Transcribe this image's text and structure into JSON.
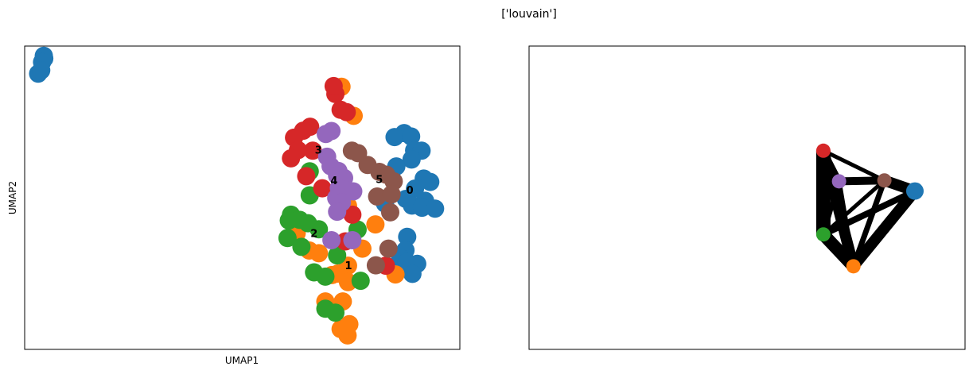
{
  "figure": {
    "suptitle": "['louvain']"
  },
  "colors": {
    "0": "#1f77b4",
    "1": "#ff7f0e",
    "2": "#2ca02c",
    "3": "#d62728",
    "4": "#9467bd",
    "5": "#8c564b",
    "edge": "#000000"
  },
  "chart_data": [
    {
      "type": "scatter",
      "title": "",
      "xlabel": "UMAP1",
      "ylabel": "UMAP2",
      "xlim": [
        0,
        100
      ],
      "ylim": [
        0,
        100
      ],
      "cluster_labels": [
        {
          "text": "0",
          "x": 88.5,
          "y": 52.2
        },
        {
          "text": "1",
          "x": 74.4,
          "y": 27.4
        },
        {
          "text": "2",
          "x": 66.5,
          "y": 37.9
        },
        {
          "text": "3",
          "x": 67.5,
          "y": 65.5
        },
        {
          "text": "4",
          "x": 71.1,
          "y": 55.4
        },
        {
          "text": "5",
          "x": 81.5,
          "y": 55.7
        }
      ],
      "points": [
        {
          "x": 4.5,
          "y": 95.9,
          "c": "0"
        },
        {
          "x": 4.4,
          "y": 96.8,
          "c": "0"
        },
        {
          "x": 4.0,
          "y": 94.7,
          "c": "0"
        },
        {
          "x": 3.1,
          "y": 90.9,
          "c": "0"
        },
        {
          "x": 3.8,
          "y": 92.0,
          "c": "0"
        },
        {
          "x": 87.2,
          "y": 71.3,
          "c": "0"
        },
        {
          "x": 85.0,
          "y": 70.0,
          "c": "0"
        },
        {
          "x": 88.8,
          "y": 70.2,
          "c": "0"
        },
        {
          "x": 89.5,
          "y": 65.6,
          "c": "0"
        },
        {
          "x": 91.2,
          "y": 65.5,
          "c": "0"
        },
        {
          "x": 88.9,
          "y": 62.6,
          "c": "0"
        },
        {
          "x": 85.4,
          "y": 60.3,
          "c": "0"
        },
        {
          "x": 91.7,
          "y": 56.3,
          "c": "0"
        },
        {
          "x": 93.2,
          "y": 55.2,
          "c": "0"
        },
        {
          "x": 89.7,
          "y": 53.0,
          "c": "0"
        },
        {
          "x": 87.6,
          "y": 49.6,
          "c": "0"
        },
        {
          "x": 89.0,
          "y": 47.4,
          "c": "0"
        },
        {
          "x": 92.0,
          "y": 49.0,
          "c": "0"
        },
        {
          "x": 91.3,
          "y": 46.7,
          "c": "0"
        },
        {
          "x": 94.3,
          "y": 46.4,
          "c": "0"
        },
        {
          "x": 82.8,
          "y": 48.1,
          "c": "0"
        },
        {
          "x": 87.9,
          "y": 37.1,
          "c": "0"
        },
        {
          "x": 87.5,
          "y": 32.7,
          "c": "0"
        },
        {
          "x": 86.3,
          "y": 30.2,
          "c": "0"
        },
        {
          "x": 87.8,
          "y": 28.8,
          "c": "0"
        },
        {
          "x": 90.2,
          "y": 28.2,
          "c": "0"
        },
        {
          "x": 89.1,
          "y": 24.9,
          "c": "0"
        },
        {
          "x": 72.8,
          "y": 86.6,
          "c": "1"
        },
        {
          "x": 75.6,
          "y": 77.0,
          "c": "1"
        },
        {
          "x": 74.3,
          "y": 47.3,
          "c": "1"
        },
        {
          "x": 62.5,
          "y": 38.3,
          "c": "1"
        },
        {
          "x": 80.6,
          "y": 41.2,
          "c": "1"
        },
        {
          "x": 77.6,
          "y": 33.2,
          "c": "1"
        },
        {
          "x": 65.4,
          "y": 32.6,
          "c": "1"
        },
        {
          "x": 67.6,
          "y": 31.7,
          "c": "1"
        },
        {
          "x": 74.3,
          "y": 27.6,
          "c": "1"
        },
        {
          "x": 72.0,
          "y": 25.0,
          "c": "1"
        },
        {
          "x": 70.6,
          "y": 24.5,
          "c": "1"
        },
        {
          "x": 74.3,
          "y": 22.2,
          "c": "1"
        },
        {
          "x": 85.2,
          "y": 24.7,
          "c": "1"
        },
        {
          "x": 69.1,
          "y": 15.8,
          "c": "1"
        },
        {
          "x": 73.1,
          "y": 15.8,
          "c": "1"
        },
        {
          "x": 74.6,
          "y": 8.3,
          "c": "1"
        },
        {
          "x": 72.6,
          "y": 6.7,
          "c": "1"
        },
        {
          "x": 74.2,
          "y": 4.6,
          "c": "1"
        },
        {
          "x": 71.4,
          "y": 84.2,
          "c": "3"
        },
        {
          "x": 65.5,
          "y": 58.7,
          "c": "2"
        },
        {
          "x": 65.5,
          "y": 50.8,
          "c": "2"
        },
        {
          "x": 61.2,
          "y": 44.4,
          "c": "2"
        },
        {
          "x": 60.7,
          "y": 42.5,
          "c": "2"
        },
        {
          "x": 63.2,
          "y": 42.7,
          "c": "2"
        },
        {
          "x": 65.1,
          "y": 41.6,
          "c": "2"
        },
        {
          "x": 67.6,
          "y": 39.6,
          "c": "2"
        },
        {
          "x": 60.4,
          "y": 36.7,
          "c": "2"
        },
        {
          "x": 63.6,
          "y": 33.8,
          "c": "2"
        },
        {
          "x": 76.5,
          "y": 39.5,
          "c": "2"
        },
        {
          "x": 71.8,
          "y": 31.0,
          "c": "2"
        },
        {
          "x": 66.5,
          "y": 25.4,
          "c": "2"
        },
        {
          "x": 69.1,
          "y": 24.0,
          "c": "2"
        },
        {
          "x": 77.2,
          "y": 22.6,
          "c": "2"
        },
        {
          "x": 69.1,
          "y": 13.4,
          "c": "2"
        },
        {
          "x": 71.4,
          "y": 12.1,
          "c": "2"
        },
        {
          "x": 71.0,
          "y": 86.8,
          "c": "3"
        },
        {
          "x": 72.6,
          "y": 79.0,
          "c": "3"
        },
        {
          "x": 74.0,
          "y": 78.2,
          "c": "3"
        },
        {
          "x": 65.6,
          "y": 73.4,
          "c": "3"
        },
        {
          "x": 64.0,
          "y": 72.1,
          "c": "3"
        },
        {
          "x": 61.9,
          "y": 69.8,
          "c": "3"
        },
        {
          "x": 66.2,
          "y": 65.5,
          "c": "3"
        },
        {
          "x": 62.8,
          "y": 65.7,
          "c": "3"
        },
        {
          "x": 61.2,
          "y": 63.0,
          "c": "3"
        },
        {
          "x": 64.7,
          "y": 57.1,
          "c": "3"
        },
        {
          "x": 68.4,
          "y": 53.1,
          "c": "3"
        },
        {
          "x": 75.3,
          "y": 44.4,
          "c": "3"
        },
        {
          "x": 73.7,
          "y": 35.6,
          "c": "3"
        },
        {
          "x": 83.0,
          "y": 27.6,
          "c": "3"
        },
        {
          "x": 70.5,
          "y": 72.0,
          "c": "4"
        },
        {
          "x": 69.2,
          "y": 71.0,
          "c": "4"
        },
        {
          "x": 69.5,
          "y": 63.5,
          "c": "4"
        },
        {
          "x": 70.3,
          "y": 60.4,
          "c": "4"
        },
        {
          "x": 72.1,
          "y": 58.8,
          "c": "4"
        },
        {
          "x": 71.8,
          "y": 57.3,
          "c": "4"
        },
        {
          "x": 73.4,
          "y": 56.5,
          "c": "4"
        },
        {
          "x": 72.2,
          "y": 53.2,
          "c": "4"
        },
        {
          "x": 74.1,
          "y": 52.4,
          "c": "4"
        },
        {
          "x": 75.5,
          "y": 52.1,
          "c": "4"
        },
        {
          "x": 71.6,
          "y": 49.9,
          "c": "4"
        },
        {
          "x": 72.9,
          "y": 48.5,
          "c": "4"
        },
        {
          "x": 71.8,
          "y": 45.4,
          "c": "4"
        },
        {
          "x": 70.5,
          "y": 36.0,
          "c": "4"
        },
        {
          "x": 75.3,
          "y": 36.0,
          "c": "4"
        },
        {
          "x": 75.2,
          "y": 65.5,
          "c": "5"
        },
        {
          "x": 76.6,
          "y": 64.7,
          "c": "5"
        },
        {
          "x": 78.8,
          "y": 60.8,
          "c": "5"
        },
        {
          "x": 81.5,
          "y": 58.5,
          "c": "5"
        },
        {
          "x": 83.1,
          "y": 57.6,
          "c": "5"
        },
        {
          "x": 84.8,
          "y": 55.4,
          "c": "5"
        },
        {
          "x": 81.0,
          "y": 50.4,
          "c": "5"
        },
        {
          "x": 84.3,
          "y": 51.1,
          "c": "5"
        },
        {
          "x": 84.0,
          "y": 45.2,
          "c": "5"
        },
        {
          "x": 83.6,
          "y": 33.2,
          "c": "5"
        },
        {
          "x": 80.7,
          "y": 27.7,
          "c": "5"
        }
      ]
    },
    {
      "type": "scatter",
      "title": "",
      "xlabel": "",
      "ylabel": "",
      "xlim": [
        0,
        100
      ],
      "ylim": [
        0,
        100
      ],
      "nodes": [
        {
          "id": "0",
          "x": 88.5,
          "y": 52.2,
          "c": "0"
        },
        {
          "id": "1",
          "x": 74.4,
          "y": 27.4,
          "c": "1"
        },
        {
          "id": "2",
          "x": 67.5,
          "y": 37.9,
          "c": "2"
        },
        {
          "id": "3",
          "x": 67.5,
          "y": 65.5,
          "c": "3"
        },
        {
          "id": "4",
          "x": 71.1,
          "y": 55.4,
          "c": "4"
        },
        {
          "id": "5",
          "x": 81.5,
          "y": 55.7,
          "c": "5"
        }
      ],
      "edges": [
        {
          "a": "3",
          "b": "2",
          "w": 18
        },
        {
          "a": "3",
          "b": "1",
          "w": 14
        },
        {
          "a": "2",
          "b": "1",
          "w": 16
        },
        {
          "a": "0",
          "b": "1",
          "w": 14
        },
        {
          "a": "0",
          "b": "5",
          "w": 14
        },
        {
          "a": "0",
          "b": "2",
          "w": 8
        },
        {
          "a": "4",
          "b": "5",
          "w": 10
        },
        {
          "a": "3",
          "b": "4",
          "w": 8
        },
        {
          "a": "4",
          "b": "2",
          "w": 6
        },
        {
          "a": "4",
          "b": "1",
          "w": 6
        },
        {
          "a": "5",
          "b": "1",
          "w": 7
        },
        {
          "a": "5",
          "b": "2",
          "w": 5
        },
        {
          "a": "3",
          "b": "5",
          "w": 5
        }
      ]
    }
  ]
}
